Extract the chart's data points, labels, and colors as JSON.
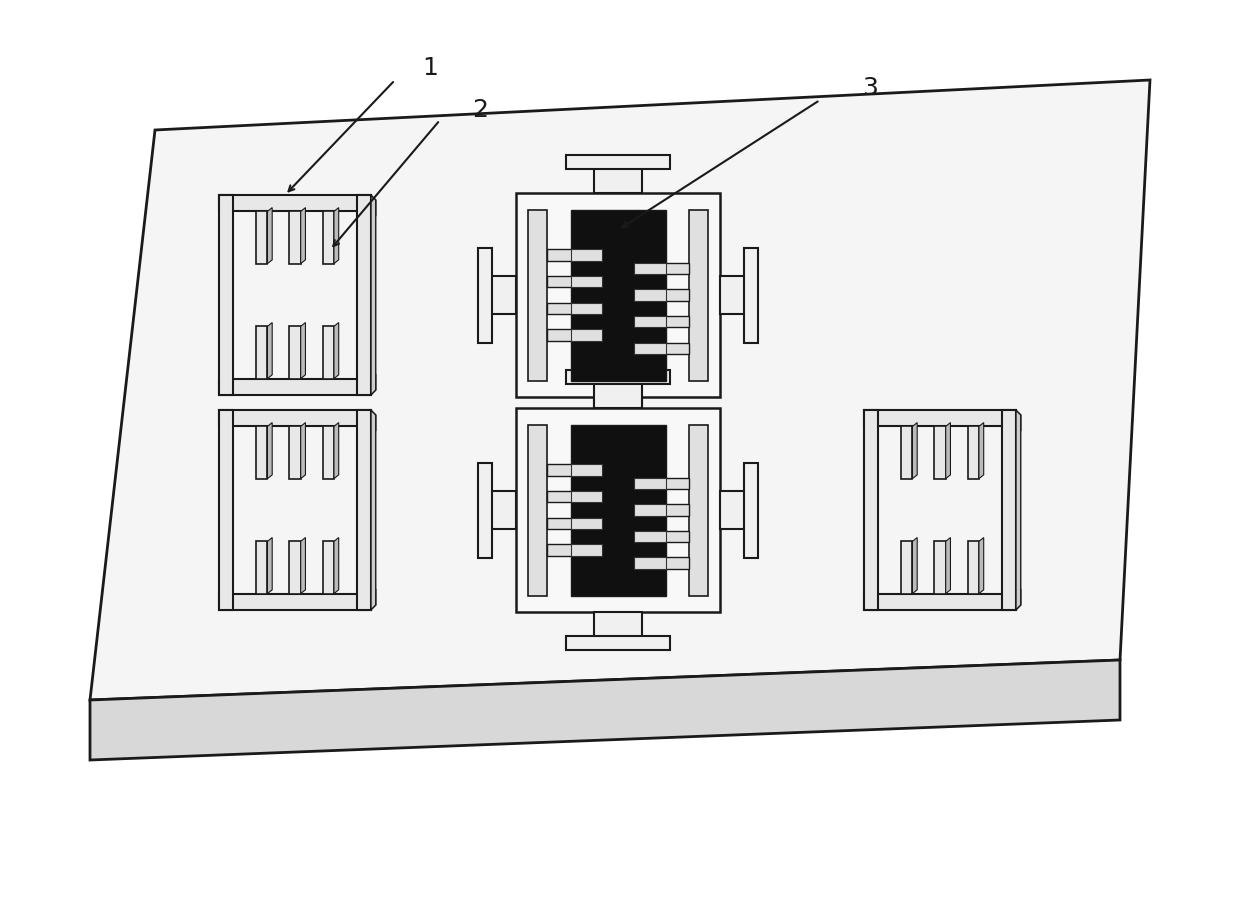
{
  "background_color": "#ffffff",
  "line_color": "#1a1a1a",
  "fill_color_light": "#f0f0f0",
  "fill_color_white": "#ffffff",
  "fill_color_dark": "#2a2a2a",
  "fill_color_gray": "#d0d0d0",
  "fill_color_side": "#e0e0e0",
  "label_1": "1",
  "label_2": "2",
  "label_3": "3",
  "label_fontsize": 18,
  "figsize": [
    12.4,
    9.13
  ],
  "dpi": 100
}
